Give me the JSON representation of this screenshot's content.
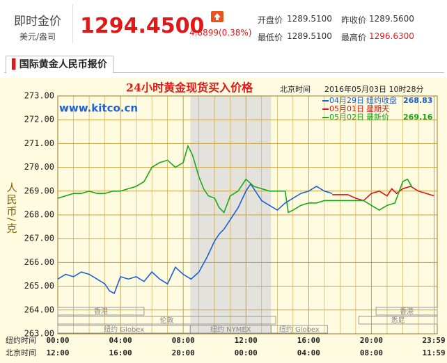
{
  "header": {
    "title": "即时金价",
    "unit": "美元/盎司",
    "price": "1294.4500",
    "change": "4.8899(0.38%)",
    "open_label": "开盘价",
    "open": "1289.5100",
    "prev_label": "昨收价",
    "prev": "1289.5600",
    "low_label": "最低价",
    "low": "1289.5100",
    "high_label": "最高价",
    "high": "1296.6300"
  },
  "tab": "国际黄金人民币报价",
  "chart_data": {
    "type": "line",
    "title": "24小时黄金现货买入价格",
    "time_label": "北京时间",
    "timestamp": "2016年05月03日 10时28分",
    "watermark": "www.kitco.cn",
    "y_label": "人民币/克",
    "xlim": [
      0,
      24.2
    ],
    "ylim": [
      263,
      273
    ],
    "yticks": [
      {
        "value": 263,
        "label": "263.00"
      },
      {
        "value": 264,
        "label": "264.00"
      },
      {
        "value": 265,
        "label": "265.00"
      },
      {
        "value": 266,
        "label": "266.00"
      },
      {
        "value": 267,
        "label": "267.00"
      },
      {
        "value": 268,
        "label": "268.00"
      },
      {
        "value": 269,
        "label": "269.00"
      },
      {
        "value": 270,
        "label": "270.00"
      },
      {
        "value": 271,
        "label": "271.00"
      },
      {
        "value": 272,
        "label": "272.00"
      },
      {
        "value": 273,
        "label": "273.00"
      }
    ],
    "xticks_label": "纽约时间",
    "xticks": [
      {
        "value": 0,
        "label": "00:00"
      },
      {
        "value": 4,
        "label": "04:00"
      },
      {
        "value": 8,
        "label": "08:00"
      },
      {
        "value": 12,
        "label": "12:00"
      },
      {
        "value": 16,
        "label": "16:00"
      },
      {
        "value": 20,
        "label": "20:00"
      },
      {
        "value": 23.98,
        "label": "23:59"
      }
    ],
    "x2ticks_label": "北京时间",
    "x2ticks": [
      {
        "value": 0,
        "label": "12:00"
      },
      {
        "value": 4,
        "label": "16:00"
      },
      {
        "value": 8,
        "label": "20:00"
      },
      {
        "value": 12,
        "label": "00:00"
      },
      {
        "value": 16,
        "label": "04:00"
      },
      {
        "value": 20,
        "label": "08:00"
      },
      {
        "value": 23.98,
        "label": "11:59"
      }
    ],
    "grid": true,
    "shade": [
      8.45,
      13.6
    ],
    "markets": [
      {
        "name": "香港",
        "start": 0,
        "end": 5.5,
        "row": 0
      },
      {
        "name": "伦敦",
        "start": 0,
        "end": 13.9,
        "row": 1
      },
      {
        "name": "纽约 Globex",
        "start": 0,
        "end": 8.45,
        "row": 2
      },
      {
        "name": "纽约 NYMEX",
        "start": 8.45,
        "end": 13.6,
        "row": 2
      },
      {
        "name": "纽约 Globex",
        "start": 13.6,
        "end": 17.2,
        "row": 2
      },
      {
        "name": "悉尼",
        "start": 19.2,
        "end": 24.2,
        "row": 1
      },
      {
        "name": "香港",
        "start": 20.3,
        "end": 24.2,
        "row": 0
      }
    ],
    "series": [
      {
        "name": "04月29日",
        "legend_text": "纽约收盘",
        "legend_value": 268.83,
        "color": "#1a5fd6",
        "x": [
          0,
          0.5,
          1,
          1.5,
          2,
          2.5,
          3,
          3.3,
          3.6,
          4,
          4.5,
          5,
          5.5,
          6,
          6.5,
          7,
          7.5,
          8,
          8.5,
          9,
          9.5,
          10,
          10.3,
          10.6,
          11,
          11.5,
          12,
          12.3,
          12.7,
          13,
          13.5,
          14,
          14.5,
          15,
          15.5,
          16,
          16.5,
          17,
          17.5
        ],
        "values": [
          265.3,
          265.5,
          265.4,
          265.6,
          265.5,
          265.3,
          265.1,
          264.8,
          264.7,
          265.4,
          265.3,
          265.4,
          265.2,
          265.6,
          265.3,
          265.1,
          265.8,
          265.5,
          265.3,
          265.6,
          266.2,
          266.9,
          267.2,
          267.4,
          267.8,
          268.3,
          269.0,
          269.3,
          268.9,
          268.6,
          268.4,
          268.2,
          268.5,
          268.7,
          268.9,
          269.0,
          269.2,
          269.0,
          268.9
        ]
      },
      {
        "name": "05月01日",
        "legend_text": "星期天",
        "color": "#d81414",
        "x": [
          17.5,
          18.5,
          19,
          19.5,
          20,
          20.5,
          21,
          21.3,
          21.6,
          22,
          22.5,
          23,
          23.5,
          24
        ],
        "values": [
          268.85,
          268.85,
          268.7,
          268.6,
          268.9,
          269.0,
          268.8,
          269.1,
          268.9,
          269.1,
          269.2,
          269.0,
          268.9,
          268.8
        ]
      },
      {
        "name": "05月02日",
        "legend_text": "最新价",
        "legend_value": 269.16,
        "color": "#18a818",
        "x": [
          0,
          0.5,
          1,
          1.5,
          2,
          2.5,
          3,
          3.5,
          4,
          4.5,
          5,
          5.5,
          6,
          6.5,
          7,
          7.5,
          8,
          8.3,
          8.6,
          9,
          9.3,
          9.6,
          10,
          10.3,
          10.6,
          11,
          11.5,
          12,
          12.5,
          13,
          13.5,
          14,
          14.5,
          14.7,
          15,
          15.5,
          16,
          16.5,
          17,
          17.5,
          18.5,
          19,
          19.5,
          20,
          20.5,
          21,
          21.5,
          22,
          22.3,
          22.6
        ],
        "values": [
          268.7,
          268.8,
          268.9,
          268.9,
          269.0,
          268.9,
          268.9,
          269.0,
          269.0,
          269.1,
          269.2,
          269.4,
          270.0,
          270.2,
          270.3,
          270.0,
          270.2,
          270.9,
          270.5,
          269.6,
          269.1,
          268.8,
          268.7,
          268.3,
          268.1,
          268.8,
          269.0,
          269.5,
          269.2,
          269.1,
          269.0,
          269.0,
          269.0,
          268.1,
          268.2,
          268.4,
          268.5,
          268.5,
          268.6,
          268.6,
          268.6,
          268.6,
          268.6,
          268.4,
          268.2,
          268.4,
          268.5,
          269.4,
          269.5,
          269.16
        ]
      }
    ]
  }
}
